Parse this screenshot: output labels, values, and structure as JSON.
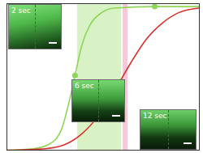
{
  "chart_data": {
    "type": "line",
    "xlim": [
      0,
      100
    ],
    "ylim": [
      0,
      1
    ],
    "xticks": [],
    "yticks": [],
    "tick_labels": false,
    "grid": false,
    "series": [
      {
        "color": "#8ed655",
        "x": [
          0,
          13.5,
          21.9,
          28.3,
          32.5,
          35.4,
          38.8,
          43,
          49.4,
          55.7,
          76.8,
          100
        ],
        "values": [
          0,
          0.01,
          0.04,
          0.14,
          0.34,
          0.51,
          0.71,
          0.85,
          0.94,
          0.97,
          0.98,
          0.98
        ]
      },
      {
        "color": "#d9302c",
        "x": [
          0,
          19.8,
          30.4,
          38.8,
          47.3,
          55.7,
          64.1,
          72.6,
          81,
          89.5,
          100
        ],
        "values": [
          0,
          0.01,
          0.04,
          0.11,
          0.23,
          0.4,
          0.59,
          0.76,
          0.87,
          0.94,
          0.97
        ]
      }
    ],
    "points": {
      "color": "#8ed655",
      "marker": "circle",
      "x": [
        35.4,
        76.8
      ],
      "values": [
        0.51,
        0.98
      ]
    },
    "bands": [
      {
        "color": "#d8f2c6",
        "x": [
          36.7,
          59.5
        ]
      },
      {
        "color": "#f7c8da",
        "x": [
          60.3,
          62.9
        ]
      }
    ],
    "annotations": [
      "2 sec",
      "6 sec",
      "12 sec"
    ]
  }
}
